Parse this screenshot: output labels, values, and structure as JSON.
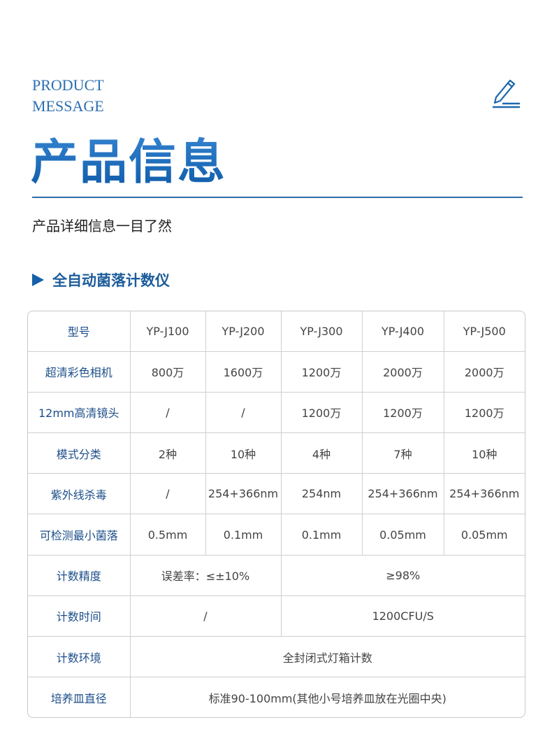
{
  "header": {
    "en_line1": "PRODUCT",
    "en_line2": "MESSAGE",
    "title": "产品信息",
    "subtitle": "产品详细信息一目了然",
    "icon": "pencil-icon"
  },
  "section": {
    "title": "全自动菌落计数仪"
  },
  "table": {
    "rows": [
      {
        "label": "型号",
        "cells": [
          "YP-J100",
          "YP-J200",
          "YP-J300",
          "YP-J400",
          "YP-J500"
        ]
      },
      {
        "label": "超清彩色相机",
        "cells": [
          "800万",
          "1600万",
          "1200万",
          "2000万",
          "2000万"
        ]
      },
      {
        "label": "12mm高清镜头",
        "cells": [
          "/",
          "/",
          "1200万",
          "1200万",
          "1200万"
        ]
      },
      {
        "label": "模式分类",
        "cells": [
          "2种",
          "10种",
          "4种",
          "7种",
          "10种"
        ]
      },
      {
        "label": "紫外线杀毒",
        "cells": [
          "/",
          "254+366nm",
          "254nm",
          "254+366nm",
          "254+366nm"
        ]
      },
      {
        "label": "可检测最小菌落",
        "cells": [
          "0.5mm",
          "0.1mm",
          "0.1mm",
          "0.05mm",
          "0.05mm"
        ]
      },
      {
        "label": "计数精度",
        "cells": [
          "误差率：≤±10%",
          "≥98%"
        ]
      },
      {
        "label": "计数时间",
        "cells": [
          "/",
          "1200CFU/S"
        ]
      },
      {
        "label": "计数环境",
        "cells": [
          "全封闭式灯箱计数"
        ]
      },
      {
        "label": "培养皿直径",
        "cells": [
          "标准90-100mm(其他小号培养皿放在光圈中央)"
        ]
      }
    ]
  }
}
